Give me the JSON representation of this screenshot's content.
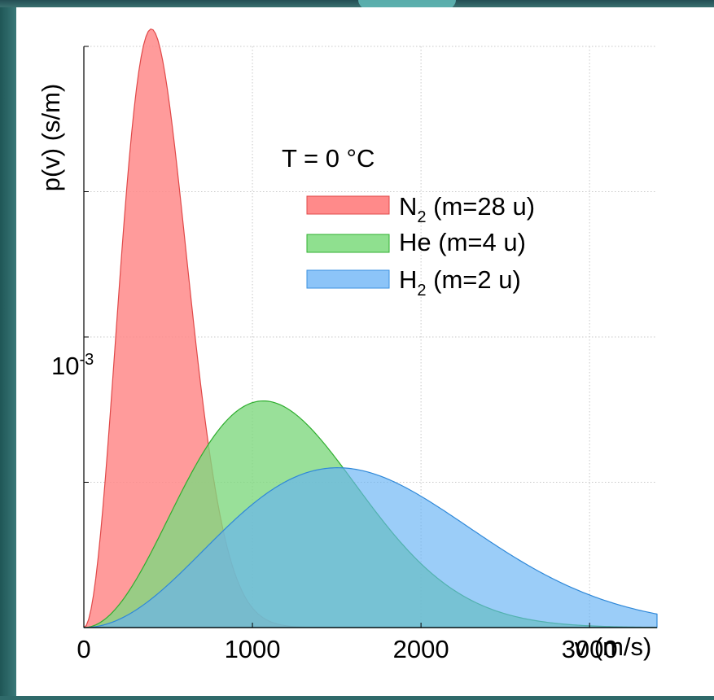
{
  "chart_data": {
    "type": "area",
    "ylabel": "p(v) (s/m)",
    "xlabel": "v (m/s)",
    "xlim": [
      0,
      3400
    ],
    "ylim": [
      0,
      0.002
    ],
    "x_ticks": [
      0,
      1000,
      2000,
      3000
    ],
    "x_tick_labels": [
      "0",
      "1000",
      "2000",
      "3000"
    ],
    "y_ticks": [
      0.0005,
      0.001,
      0.0015,
      0.002
    ],
    "y_tick_label": {
      "base": "10",
      "exponent": "-3",
      "value": 0.001
    },
    "grid": true,
    "legend": {
      "position": "top-right",
      "title": "T = 0 °C",
      "entries": [
        {
          "main": "N",
          "sub": "2",
          "rest": " (m=28 u)",
          "color": "#ff8a8a",
          "stroke": "#e04848"
        },
        {
          "main": "He",
          "sub": "",
          "rest": " (m=4 u)",
          "color": "#8fe08f",
          "stroke": "#30b030"
        },
        {
          "main": "H",
          "sub": "2",
          "rest": " (m=2 u)",
          "color": "#8cc4f8",
          "stroke": "#3a90e0"
        }
      ]
    },
    "series": [
      {
        "name": "N2 (m=28 u)",
        "distribution": "maxwell-boltzmann",
        "mass_u": 28,
        "temperature_C": 0,
        "peak_v": 400,
        "peak_p": 0.00206,
        "color": "#ff8a8a",
        "stroke": "#e04848",
        "opacity": 0.85
      },
      {
        "name": "He (m=4 u)",
        "distribution": "maxwell-boltzmann",
        "mass_u": 4,
        "temperature_C": 0,
        "peak_v": 1065,
        "peak_p": 0.00078,
        "color": "#7fd87f",
        "stroke": "#2fae2f",
        "opacity": 0.8
      },
      {
        "name": "H2 (m=2 u)",
        "distribution": "maxwell-boltzmann",
        "mass_u": 2,
        "temperature_C": 0,
        "peak_v": 1506,
        "peak_p": 0.00055,
        "color": "#66b2f4",
        "stroke": "#2f88d8",
        "opacity": 0.65
      }
    ]
  }
}
